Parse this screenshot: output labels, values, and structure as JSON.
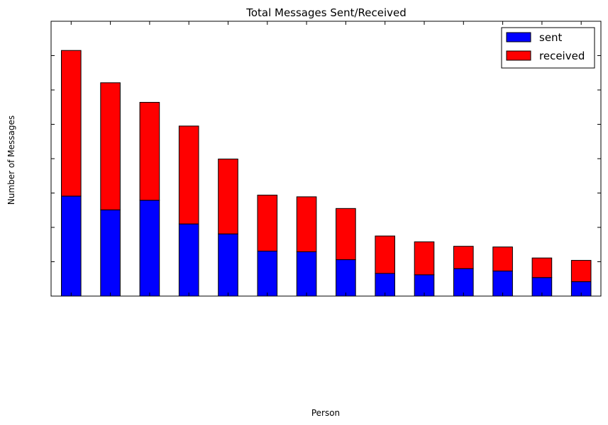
{
  "chart_data": {
    "type": "bar",
    "stacked": true,
    "title": "Total Messages Sent/Received",
    "xlabel": "Person",
    "ylabel": "Number of Messages",
    "tick_labels_visible": false,
    "ylim": [
      0,
      8
    ],
    "y_ticks": [
      1,
      2,
      3,
      4,
      5,
      6,
      7
    ],
    "grid": false,
    "legend_position": "top-right",
    "categories": [
      "",
      "",
      "",
      "",
      "",
      "",
      "",
      "",
      "",
      "",
      "",
      "",
      "",
      ""
    ],
    "series": [
      {
        "name": "sent",
        "color": "#0000ff",
        "values": [
          2.91,
          2.51,
          2.79,
          2.1,
          1.81,
          1.31,
          1.29,
          1.06,
          0.66,
          0.62,
          0.8,
          0.73,
          0.54,
          0.42
        ]
      },
      {
        "name": "received",
        "color": "#ff0000",
        "values": [
          4.24,
          3.7,
          2.85,
          2.85,
          2.18,
          1.63,
          1.6,
          1.49,
          1.09,
          0.96,
          0.65,
          0.7,
          0.57,
          0.62
        ]
      }
    ]
  }
}
